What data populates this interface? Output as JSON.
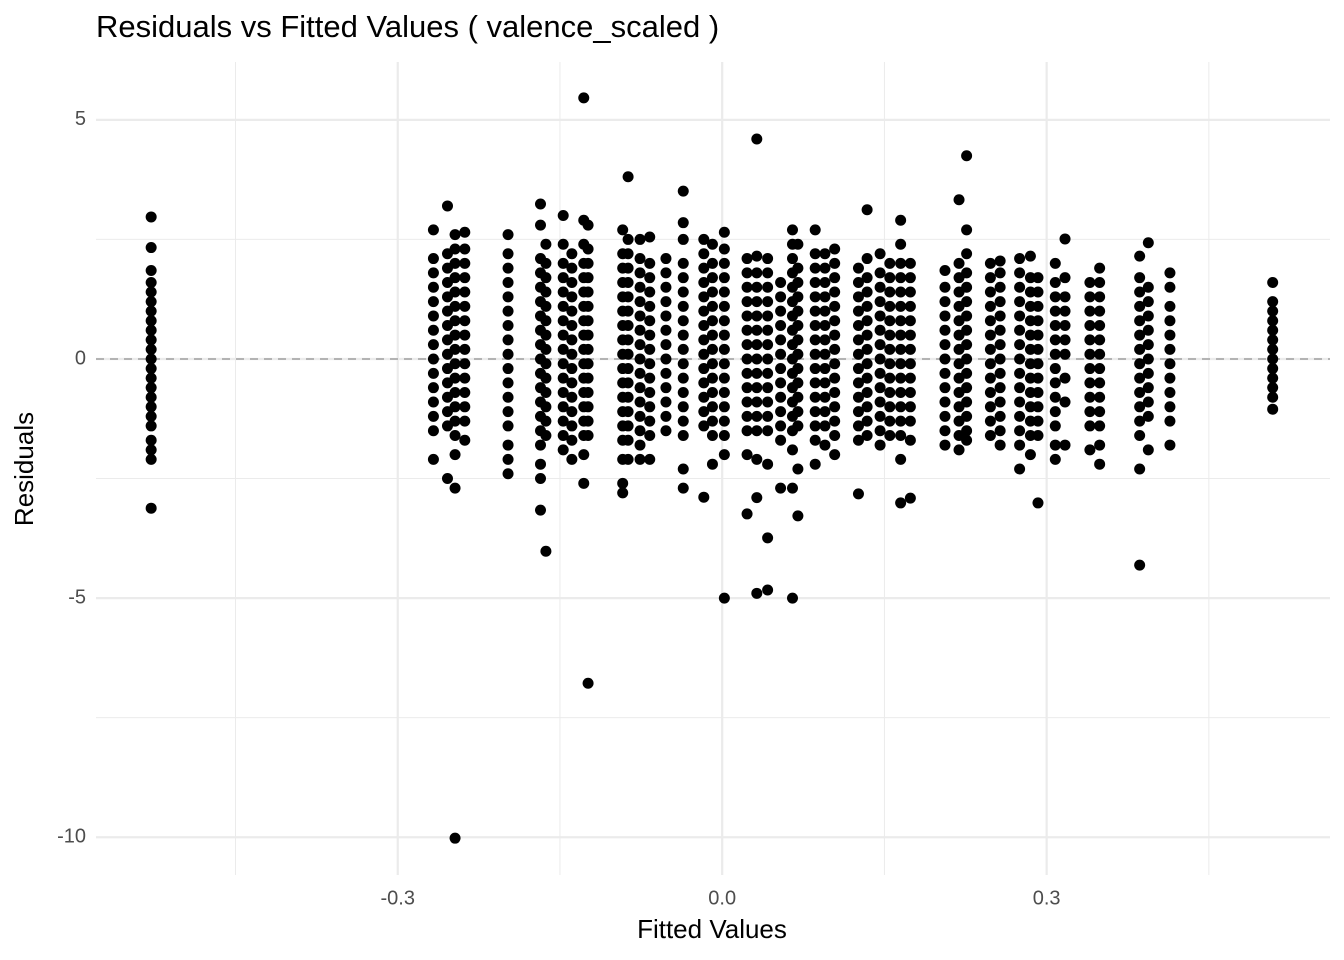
{
  "chart_data": {
    "type": "scatter",
    "title": "Residuals vs Fitted Values ( valence_scaled )",
    "xlabel": "Fitted Values",
    "ylabel": "Residuals",
    "color": "#000000",
    "grid": true,
    "hline": 0,
    "xlim": [
      -0.579,
      0.562
    ],
    "ylim": [
      -10.79,
      6.21
    ],
    "xticks": [
      -0.3,
      {
        "value": 0,
        "label": "0.0"
      },
      0.3
    ],
    "yticks": [
      5,
      0,
      -5,
      -10
    ],
    "x_minor_grid": [
      -0.45,
      -0.15,
      0.15,
      0.45
    ],
    "y_minor_grid": [
      2.5,
      -2.5,
      -7.5
    ],
    "x": [
      -0.528,
      -0.267,
      -0.254,
      -0.247,
      -0.238,
      -0.198,
      -0.168,
      -0.163,
      -0.147,
      -0.139,
      -0.128,
      -0.124,
      -0.092,
      -0.087,
      -0.076,
      -0.067,
      -0.052,
      -0.036,
      -0.017,
      -0.009,
      0.002,
      0.023,
      0.032,
      0.042,
      0.054,
      0.065,
      0.07,
      0.086,
      0.095,
      0.104,
      0.126,
      0.134,
      0.146,
      0.155,
      0.165,
      0.174,
      0.206,
      0.219,
      0.226,
      0.248,
      0.257,
      0.275,
      0.285,
      0.292,
      0.308,
      0.317,
      0.34,
      0.349,
      0.386,
      0.394,
      0.414,
      0.509
    ],
    "values": [
      [
        2.97,
        2.33,
        1.85,
        1.6,
        1.4,
        1.2,
        1.0,
        0.8,
        0.6,
        0.4,
        0.2,
        0,
        -0.2,
        -0.4,
        -0.6,
        -0.8,
        -1.0,
        -1.2,
        -1.4,
        -1.7,
        -1.9,
        -2.1,
        -3.12
      ],
      [
        2.7,
        2.1,
        1.8,
        1.5,
        1.2,
        0.9,
        0.6,
        0.3,
        0,
        -0.3,
        -0.6,
        -0.9,
        -1.2,
        -1.5,
        -2.1
      ],
      [
        3.2,
        2.2,
        1.9,
        1.6,
        1.3,
        1.0,
        0.7,
        0.4,
        0.1,
        -0.2,
        -0.5,
        -0.8,
        -1.1,
        -1.4,
        -2.5
      ],
      [
        2.6,
        2.3,
        2.0,
        1.7,
        1.4,
        1.1,
        0.8,
        0.5,
        0.2,
        -0.1,
        -0.4,
        -0.7,
        -1.0,
        -1.3,
        -1.6,
        -2.0,
        -2.7,
        -10.02
      ],
      [
        2.65,
        2.3,
        2.0,
        1.7,
        1.4,
        1.1,
        0.8,
        0.5,
        0.2,
        -0.1,
        -0.4,
        -0.7,
        -1.0,
        -1.3,
        -1.7
      ],
      [
        2.6,
        2.2,
        1.9,
        1.6,
        1.3,
        1.0,
        0.7,
        0.4,
        0.1,
        -0.2,
        -0.5,
        -0.8,
        -1.1,
        -1.4,
        -1.8,
        -2.1,
        -2.4
      ],
      [
        3.24,
        2.8,
        2.1,
        1.8,
        1.5,
        1.2,
        0.9,
        0.6,
        0.3,
        0,
        -0.3,
        -0.6,
        -0.9,
        -1.2,
        -1.5,
        -1.8,
        -2.2,
        -2.5,
        -3.16
      ],
      [
        2.4,
        2.0,
        1.7,
        1.4,
        1.1,
        0.8,
        0.5,
        0.2,
        -0.1,
        -0.4,
        -0.7,
        -1.0,
        -1.3,
        -1.6,
        -4.02
      ],
      [
        3.0,
        2.4,
        2.0,
        1.7,
        1.4,
        1.1,
        0.8,
        0.5,
        0.2,
        -0.1,
        -0.4,
        -0.7,
        -1.0,
        -1.3,
        -1.6,
        -1.9
      ],
      [
        2.2,
        1.9,
        1.6,
        1.3,
        1.0,
        0.7,
        0.4,
        0.1,
        -0.2,
        -0.5,
        -0.8,
        -1.1,
        -1.4,
        -1.7,
        -2.1
      ],
      [
        5.46,
        2.9,
        2.4,
        2.0,
        1.7,
        1.4,
        1.1,
        0.8,
        0.5,
        0.2,
        -0.1,
        -0.4,
        -0.7,
        -1.0,
        -1.3,
        -1.6,
        -2.0,
        -2.6
      ],
      [
        2.8,
        2.3,
        2.0,
        1.7,
        1.4,
        1.1,
        0.8,
        0.5,
        0.2,
        -0.1,
        -0.4,
        -0.7,
        -1.0,
        -1.3,
        -1.6,
        -6.78
      ],
      [
        2.7,
        2.2,
        1.9,
        1.6,
        1.3,
        1.0,
        0.7,
        0.4,
        0.1,
        -0.2,
        -0.5,
        -0.8,
        -1.1,
        -1.4,
        -1.7,
        -2.1,
        -2.6,
        -2.8
      ],
      [
        3.81,
        2.5,
        2.2,
        1.9,
        1.6,
        1.3,
        1.0,
        0.7,
        0.4,
        0.1,
        -0.2,
        -0.5,
        -0.8,
        -1.1,
        -1.4,
        -1.7,
        -2.1
      ],
      [
        2.5,
        2.1,
        1.8,
        1.5,
        1.2,
        0.9,
        0.6,
        0.3,
        0,
        -0.3,
        -0.6,
        -0.9,
        -1.2,
        -1.5,
        -1.8,
        -2.1
      ],
      [
        2.55,
        2.0,
        1.7,
        1.4,
        1.1,
        0.8,
        0.5,
        0.2,
        -0.1,
        -0.4,
        -0.7,
        -1.0,
        -1.3,
        -1.6,
        -2.1
      ],
      [
        2.1,
        1.8,
        1.5,
        1.2,
        0.9,
        0.6,
        0.3,
        0,
        -0.3,
        -0.6,
        -0.9,
        -1.2,
        -1.5
      ],
      [
        3.51,
        2.85,
        2.5,
        2.0,
        1.7,
        1.4,
        1.1,
        0.8,
        0.5,
        0.2,
        -0.1,
        -0.4,
        -0.7,
        -1.0,
        -1.3,
        -1.6,
        -2.3,
        -2.7
      ],
      [
        2.5,
        2.2,
        1.9,
        1.6,
        1.3,
        1.0,
        0.7,
        0.4,
        0.1,
        -0.2,
        -0.5,
        -0.8,
        -1.1,
        -1.4,
        -2.89
      ],
      [
        2.4,
        2.0,
        1.7,
        1.4,
        1.1,
        0.8,
        0.5,
        0.2,
        -0.1,
        -0.4,
        -0.7,
        -1.0,
        -1.3,
        -1.6,
        -2.2
      ],
      [
        2.65,
        2.3,
        2.0,
        1.7,
        1.4,
        1.1,
        0.8,
        0.5,
        0.2,
        -0.1,
        -0.4,
        -0.7,
        -1.0,
        -1.3,
        -1.6,
        -2.0,
        -5.0
      ],
      [
        2.1,
        1.8,
        1.5,
        1.2,
        0.9,
        0.6,
        0.3,
        0,
        -0.3,
        -0.6,
        -0.9,
        -1.2,
        -1.5,
        -2.0,
        -3.24
      ],
      [
        4.6,
        2.15,
        1.8,
        1.5,
        1.2,
        0.9,
        0.6,
        0.3,
        0,
        -0.3,
        -0.6,
        -0.9,
        -1.2,
        -1.5,
        -2.1,
        -2.9,
        -4.9
      ],
      [
        2.1,
        1.8,
        1.5,
        1.2,
        0.9,
        0.6,
        0.3,
        0,
        -0.3,
        -0.6,
        -0.9,
        -1.2,
        -1.5,
        -2.2,
        -3.74,
        -4.83
      ],
      [
        1.6,
        1.3,
        1.0,
        0.7,
        0.4,
        0.1,
        -0.2,
        -0.5,
        -0.8,
        -1.1,
        -1.4,
        -1.7,
        -2.7
      ],
      [
        2.7,
        2.4,
        2.1,
        1.8,
        1.5,
        1.2,
        0.9,
        0.6,
        0.3,
        0,
        -0.3,
        -0.6,
        -0.9,
        -1.2,
        -1.5,
        -1.9,
        -2.7,
        -5.0
      ],
      [
        2.4,
        1.9,
        1.6,
        1.3,
        1.0,
        0.7,
        0.4,
        0.1,
        -0.2,
        -0.5,
        -0.8,
        -1.1,
        -1.4,
        -2.3,
        -3.28
      ],
      [
        2.7,
        2.2,
        1.9,
        1.6,
        1.3,
        1.0,
        0.7,
        0.4,
        0.1,
        -0.2,
        -0.5,
        -0.8,
        -1.1,
        -1.4,
        -1.7,
        -2.2
      ],
      [
        2.2,
        1.9,
        1.6,
        1.3,
        1.0,
        0.7,
        0.4,
        0.1,
        -0.2,
        -0.5,
        -0.8,
        -1.1,
        -1.4,
        -1.8
      ],
      [
        2.3,
        2.0,
        1.7,
        1.4,
        1.1,
        0.8,
        0.5,
        0.2,
        -0.1,
        -0.4,
        -0.7,
        -1.0,
        -1.3,
        -1.6,
        -2.0
      ],
      [
        1.9,
        1.6,
        1.3,
        1.0,
        0.7,
        0.4,
        0.1,
        -0.2,
        -0.5,
        -0.8,
        -1.1,
        -1.4,
        -1.7,
        -2.82
      ],
      [
        3.12,
        2.1,
        1.7,
        1.4,
        1.1,
        0.8,
        0.5,
        0.2,
        -0.1,
        -0.4,
        -0.7,
        -1.0,
        -1.3,
        -1.6
      ],
      [
        2.2,
        1.8,
        1.5,
        1.2,
        0.9,
        0.6,
        0.3,
        0,
        -0.3,
        -0.6,
        -0.9,
        -1.2,
        -1.5,
        -1.8
      ],
      [
        2.0,
        1.7,
        1.4,
        1.1,
        0.8,
        0.5,
        0.2,
        -0.1,
        -0.4,
        -0.7,
        -1.0,
        -1.3,
        -1.6
      ],
      [
        2.9,
        2.4,
        2.0,
        1.7,
        1.4,
        1.1,
        0.8,
        0.5,
        0.2,
        -0.1,
        -0.4,
        -0.7,
        -1.0,
        -1.3,
        -1.6,
        -2.1,
        -3.01
      ],
      [
        2.0,
        1.7,
        1.4,
        1.1,
        0.8,
        0.5,
        0.2,
        -0.1,
        -0.4,
        -0.7,
        -1.0,
        -1.3,
        -1.7,
        -2.91
      ],
      [
        1.85,
        1.5,
        1.2,
        0.9,
        0.6,
        0.3,
        0,
        -0.3,
        -0.6,
        -0.9,
        -1.2,
        -1.5,
        -1.8
      ],
      [
        3.33,
        2.0,
        1.7,
        1.4,
        1.1,
        0.8,
        0.5,
        0.2,
        -0.1,
        -0.4,
        -0.7,
        -1.0,
        -1.3,
        -1.6,
        -1.9
      ],
      [
        4.25,
        2.7,
        2.2,
        1.8,
        1.5,
        1.2,
        0.9,
        0.6,
        0.3,
        0,
        -0.3,
        -0.6,
        -0.9,
        -1.2,
        -1.5,
        -1.7
      ],
      [
        2.0,
        1.7,
        1.4,
        1.1,
        0.8,
        0.5,
        0.2,
        -0.1,
        -0.4,
        -0.7,
        -1.0,
        -1.3,
        -1.6
      ],
      [
        2.05,
        1.8,
        1.5,
        1.2,
        0.9,
        0.6,
        0.3,
        0,
        -0.3,
        -0.6,
        -0.9,
        -1.2,
        -1.5,
        -1.8
      ],
      [
        2.1,
        1.8,
        1.5,
        1.2,
        0.9,
        0.6,
        0.3,
        0,
        -0.3,
        -0.6,
        -0.9,
        -1.2,
        -1.5,
        -1.8,
        -2.3
      ],
      [
        2.15,
        1.7,
        1.4,
        1.1,
        0.8,
        0.5,
        0.2,
        -0.1,
        -0.4,
        -0.7,
        -1.0,
        -1.3,
        -1.6,
        -2.0
      ],
      [
        1.7,
        1.4,
        1.1,
        0.8,
        0.5,
        0.2,
        -0.1,
        -0.4,
        -0.7,
        -1.0,
        -1.3,
        -1.6,
        -3.01
      ],
      [
        2.0,
        1.6,
        1.3,
        1.0,
        0.7,
        0.4,
        0.1,
        -0.2,
        -0.5,
        -0.8,
        -1.1,
        -1.4,
        -1.8,
        -2.1
      ],
      [
        2.51,
        1.7,
        1.3,
        1.0,
        0.7,
        0.4,
        0.1,
        -0.4,
        -0.9,
        -1.8
      ],
      [
        1.6,
        1.3,
        1.0,
        0.7,
        0.4,
        0.1,
        -0.2,
        -0.5,
        -0.8,
        -1.1,
        -1.4,
        -1.9
      ],
      [
        1.9,
        1.6,
        1.3,
        1.0,
        0.7,
        0.4,
        0.1,
        -0.2,
        -0.5,
        -0.8,
        -1.1,
        -1.4,
        -1.8,
        -2.2
      ],
      [
        2.15,
        1.7,
        1.4,
        1.1,
        0.8,
        0.5,
        0.2,
        -0.1,
        -0.4,
        -0.7,
        -1.0,
        -1.3,
        -1.6,
        -2.3,
        -4.31
      ],
      [
        2.43,
        1.5,
        1.2,
        0.9,
        0.6,
        0.3,
        0,
        -0.3,
        -0.6,
        -0.9,
        -1.2,
        -1.9
      ],
      [
        1.8,
        1.5,
        1.1,
        0.8,
        0.5,
        0.2,
        -0.1,
        -0.4,
        -0.7,
        -1.0,
        -1.3,
        -1.8
      ],
      [
        1.6,
        1.2,
        1.0,
        0.8,
        0.6,
        0.4,
        0.2,
        0,
        -0.2,
        -0.4,
        -0.6,
        -0.8,
        -1.05
      ]
    ]
  }
}
